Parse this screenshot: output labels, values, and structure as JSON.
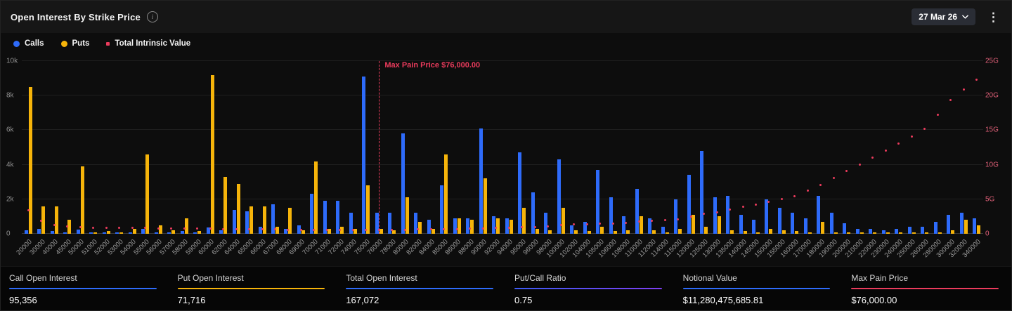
{
  "header": {
    "title": "Open Interest By Strike Price",
    "expiry": "27 Mar 26"
  },
  "icons": {
    "info": "i",
    "kebab": "⋮"
  },
  "legend": [
    {
      "label": "Calls",
      "color": "#2e6bfa",
      "marker": "circle"
    },
    {
      "label": "Puts",
      "color": "#f6b40a",
      "marker": "circle"
    },
    {
      "label": "Total Intrinsic Value",
      "color": "#ea3b5c",
      "marker": "dot"
    }
  ],
  "chart_data": {
    "type": "bar",
    "title": "Open Interest By Strike Price",
    "legend_position": "top-left",
    "grid": true,
    "categories": [
      "20000",
      "30000",
      "40000",
      "45000",
      "50000",
      "51000",
      "52000",
      "53000",
      "54000",
      "55000",
      "56000",
      "57000",
      "58000",
      "59000",
      "60000",
      "62000",
      "64000",
      "65000",
      "66000",
      "67000",
      "68000",
      "69000",
      "70000",
      "71000",
      "72000",
      "74000",
      "75000",
      "76000",
      "78000",
      "80000",
      "82000",
      "84000",
      "85000",
      "86000",
      "88000",
      "90000",
      "92000",
      "94000",
      "95000",
      "96000",
      "98000",
      "100000",
      "102000",
      "104000",
      "105000",
      "106000",
      "108000",
      "110000",
      "112000",
      "114000",
      "115000",
      "120000",
      "125000",
      "130000",
      "135000",
      "140000",
      "145000",
      "150000",
      "155000",
      "160000",
      "170000",
      "180000",
      "190000",
      "200000",
      "210000",
      "220000",
      "230000",
      "240000",
      "250000",
      "260000",
      "280000",
      "300000",
      "320000",
      "340000"
    ],
    "series": [
      {
        "name": "Calls",
        "type": "bar",
        "axis": "left",
        "color": "#2e6bfa",
        "values": [
          200,
          300,
          150,
          100,
          250,
          50,
          100,
          50,
          100,
          300,
          50,
          100,
          150,
          50,
          350,
          200,
          1400,
          1300,
          400,
          1700,
          300,
          500,
          2300,
          1900,
          1900,
          1200,
          9100,
          1200,
          1200,
          5800,
          1200,
          800,
          2800,
          900,
          900,
          6100,
          1000,
          900,
          4700,
          2400,
          1200,
          4300,
          500,
          700,
          3700,
          2100,
          1000,
          2600,
          900,
          400,
          2000,
          3400,
          4800,
          2100,
          2200,
          1100,
          800,
          2000,
          1500,
          1200,
          900,
          2200,
          1200,
          600,
          300,
          300,
          200,
          300,
          400,
          400,
          700,
          1100,
          1200,
          900
        ]
      },
      {
        "name": "Puts",
        "type": "bar",
        "axis": "left",
        "color": "#f6b40a",
        "values": [
          8500,
          1600,
          1600,
          800,
          3900,
          100,
          150,
          100,
          300,
          4600,
          500,
          200,
          900,
          150,
          9200,
          3300,
          2900,
          1600,
          1600,
          400,
          1500,
          200,
          4200,
          300,
          400,
          300,
          2800,
          300,
          200,
          2100,
          700,
          300,
          4600,
          900,
          800,
          3200,
          900,
          800,
          1500,
          300,
          200,
          1500,
          200,
          150,
          400,
          150,
          200,
          1000,
          200,
          100,
          300,
          1100,
          400,
          1000,
          200,
          150,
          100,
          300,
          200,
          150,
          100,
          700,
          100,
          100,
          50,
          50,
          50,
          50,
          50,
          50,
          100,
          200,
          800,
          500
        ]
      },
      {
        "name": "Total Intrinsic Value",
        "type": "scatter",
        "axis": "right",
        "color": "#ea3b5c",
        "values_unit": "G",
        "values": [
          3.4,
          1.8,
          1.2,
          1.0,
          0.9,
          0.85,
          0.85,
          0.8,
          0.8,
          0.8,
          0.75,
          0.75,
          0.75,
          0.7,
          0.7,
          0.65,
          0.65,
          0.6,
          0.6,
          0.6,
          0.55,
          0.55,
          0.5,
          0.5,
          0.5,
          0.5,
          0.5,
          0.5,
          0.5,
          0.55,
          0.6,
          0.6,
          0.65,
          0.65,
          0.7,
          0.75,
          0.8,
          0.85,
          0.9,
          0.95,
          1.0,
          1.2,
          1.3,
          1.35,
          1.4,
          1.45,
          1.55,
          1.7,
          1.8,
          1.9,
          2.0,
          2.4,
          2.8,
          3.1,
          3.5,
          3.9,
          4.2,
          4.6,
          5.0,
          5.4,
          6.2,
          7.0,
          8.0,
          9.0,
          10.0,
          11.0,
          12.0,
          13.0,
          14.0,
          15.1,
          17.2,
          19.3,
          20.8,
          22.3
        ]
      }
    ],
    "left_axis": {
      "ticks": [
        "0",
        "2k",
        "4k",
        "6k",
        "8k",
        "10k"
      ],
      "min": 0,
      "max": 10000
    },
    "right_axis": {
      "ticks": [
        "0",
        "5G",
        "10G",
        "15G",
        "20G",
        "25G"
      ],
      "min": 0,
      "max": 25
    },
    "annotation": {
      "label": "Max Pain Price $76,000.00",
      "x": "76000"
    }
  },
  "stats": [
    {
      "label": "Call Open Interest",
      "value": "95,356",
      "color": "#2e6bfa"
    },
    {
      "label": "Put Open Interest",
      "value": "71,716",
      "color": "#f6b40a"
    },
    {
      "label": "Total Open Interest",
      "value": "167,072",
      "color": "#2e6bfa"
    },
    {
      "label": "Put/Call Ratio",
      "value": "0.75",
      "color": "#3d5bf5",
      "color_end": "#7d3ff0"
    },
    {
      "label": "Notional Value",
      "value": "$11,280,475,685.81",
      "color": "#2e6bfa"
    },
    {
      "label": "Max Pain Price",
      "value": "$76,000.00",
      "color": "#ea3b5c"
    }
  ]
}
